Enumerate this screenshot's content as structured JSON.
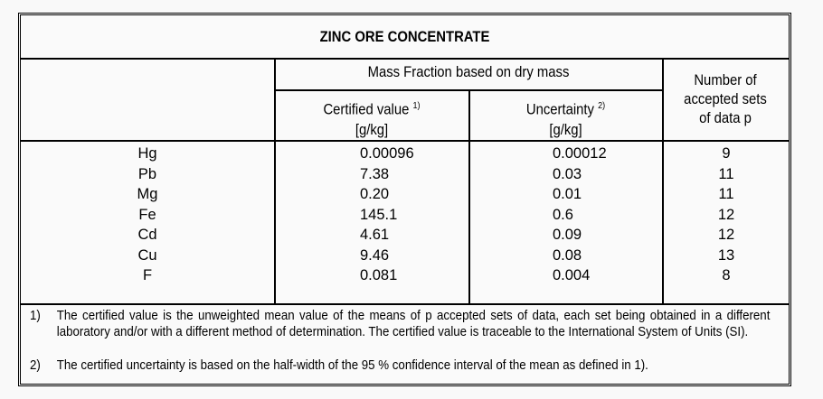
{
  "title": "ZINC ORE CONCENTRATE",
  "header": {
    "group": "Mass Fraction based on dry mass",
    "certified": "Certified value",
    "certified_note": "1)",
    "uncertainty": "Uncertainty",
    "uncertainty_note": "2)",
    "unit1": "[g/kg]",
    "unit2": "[g/kg]",
    "count": [
      "Number of",
      "accepted sets",
      "of data p"
    ]
  },
  "rows": [
    {
      "element": "Hg",
      "value": "0.00096",
      "uncertainty": "0.00012",
      "sets": "9"
    },
    {
      "element": "Pb",
      "value": "7.38",
      "uncertainty": "0.03",
      "sets": "11"
    },
    {
      "element": "Mg",
      "value": "0.20",
      "uncertainty": "0.01",
      "sets": "11"
    },
    {
      "element": "Fe",
      "value": "145.1",
      "uncertainty": "0.6",
      "sets": "12"
    },
    {
      "element": "Cd",
      "value": "4.61",
      "uncertainty": "0.09",
      "sets": "12"
    },
    {
      "element": "Cu",
      "value": "9.46",
      "uncertainty": "0.08",
      "sets": "13"
    },
    {
      "element": "F",
      "value": "0.081",
      "uncertainty": "0.004",
      "sets": "8"
    }
  ],
  "footnotes": [
    {
      "num": "1)",
      "text": "The certified value is the unweighted mean value of the means of p accepted sets of data, each set being obtained in a different laboratory and/or with a different method of determination. The certified value is traceable to the International System of Units (SI)."
    },
    {
      "num": "2)",
      "text": "The certified uncertainty is based on the half-width of the 95 % confidence interval of the mean as defined in 1)."
    }
  ]
}
